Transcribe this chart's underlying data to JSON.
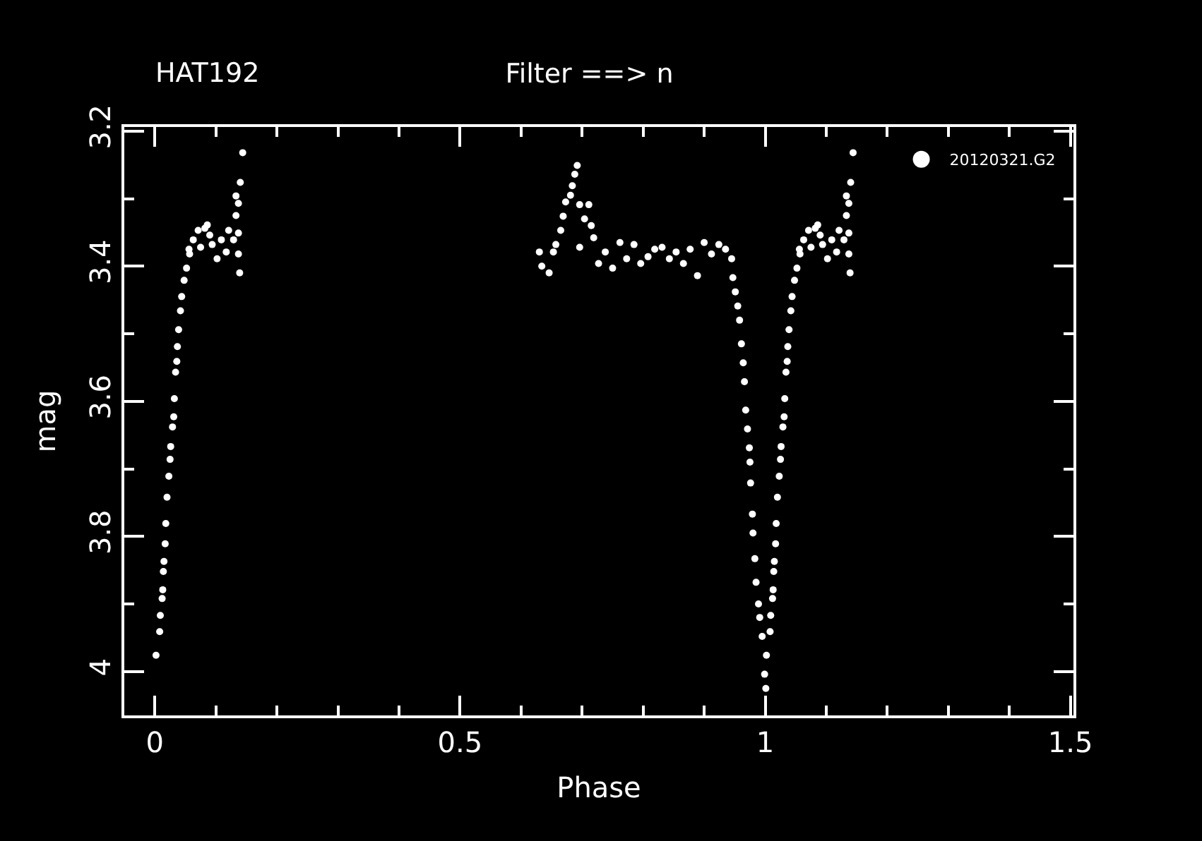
{
  "chart_data": {
    "type": "scatter",
    "title": "Filter ==> n",
    "xlabel": "Phase",
    "ylabel": "mag",
    "annotations": [
      "HAT192"
    ],
    "xlim": [
      -0.05,
      1.505
    ],
    "ylim": [
      4.065,
      3.194
    ],
    "xticks": [
      0,
      {
        "value": 0.1,
        "label": null
      },
      {
        "value": 0.2,
        "label": null
      },
      {
        "value": 0.3,
        "label": null
      },
      {
        "value": 0.4,
        "label": null
      },
      0.5,
      {
        "value": 0.6,
        "label": null
      },
      {
        "value": 0.7,
        "label": null
      },
      {
        "value": 0.8,
        "label": null
      },
      {
        "value": 0.9,
        "label": null
      },
      1,
      {
        "value": 1.1,
        "label": null
      },
      {
        "value": 1.2,
        "label": null
      },
      {
        "value": 1.3,
        "label": null
      },
      {
        "value": 1.4,
        "label": null
      },
      1.5
    ],
    "yticks": [
      3.2,
      {
        "value": 3.3,
        "label": null
      },
      3.4,
      {
        "value": 3.5,
        "label": null
      },
      3.6,
      {
        "value": 3.7,
        "label": null
      },
      3.8,
      {
        "value": 3.9,
        "label": null
      },
      4
    ],
    "grid": false,
    "legend": "top right",
    "marker": "circle",
    "series": [
      {
        "name": "20120321.G2",
        "color": "#ffffff",
        "x": [
          0.002,
          0.008,
          0.009,
          0.012,
          0.013,
          0.014,
          0.015,
          0.017,
          0.018,
          0.02,
          0.023,
          0.025,
          0.026,
          0.029,
          0.031,
          0.032,
          0.034,
          0.036,
          0.037,
          0.039,
          0.042,
          0.044,
          0.048,
          0.052,
          0.057,
          0.063,
          0.071,
          0.082,
          0.086,
          0.094,
          0.102,
          0.109,
          0.121,
          0.129,
          0.137,
          0.137,
          0.139,
          0.133,
          0.137,
          0.133,
          0.14,
          0.144,
          0.056,
          0.075,
          0.09,
          0.117,
          0.63,
          0.634,
          0.646,
          0.653,
          0.657,
          0.665,
          0.669,
          0.673,
          0.681,
          0.684,
          0.688,
          0.692,
          0.696,
          0.696,
          0.704,
          0.711,
          0.715,
          0.719,
          0.727,
          0.738,
          0.75,
          0.762,
          0.773,
          0.785,
          0.796,
          0.808,
          0.819,
          0.831,
          0.843,
          0.854,
          0.866,
          0.877,
          0.889,
          0.9,
          0.912,
          0.924,
          0.935,
          0.945,
          0.947,
          0.951,
          0.955,
          0.958,
          0.961,
          0.964,
          0.966,
          0.968,
          0.971,
          0.974,
          0.975,
          0.976,
          0.979,
          0.98,
          0.983,
          0.985,
          0.989,
          0.991,
          0.995,
          0.999,
          1.001,
          1.002,
          1.008,
          1.009,
          1.012,
          1.013,
          1.014,
          1.015,
          1.017,
          1.018,
          1.02,
          1.023,
          1.025,
          1.026,
          1.029,
          1.031,
          1.032,
          1.034,
          1.036,
          1.037,
          1.039,
          1.042,
          1.044,
          1.048,
          1.052,
          1.057,
          1.063,
          1.071,
          1.082,
          1.086,
          1.094,
          1.102,
          1.109,
          1.121,
          1.129,
          1.137,
          1.137,
          1.139,
          1.133,
          1.137,
          1.133,
          1.14,
          1.144,
          1.056,
          1.075,
          1.09,
          1.117
        ],
        "values": [
          3.976,
          3.941,
          3.917,
          3.892,
          3.879,
          3.852,
          3.837,
          3.811,
          3.781,
          3.742,
          3.711,
          3.686,
          3.667,
          3.638,
          3.623,
          3.596,
          3.557,
          3.541,
          3.519,
          3.494,
          3.466,
          3.445,
          3.421,
          3.403,
          3.382,
          3.361,
          3.347,
          3.344,
          3.339,
          3.368,
          3.389,
          3.361,
          3.347,
          3.361,
          3.351,
          3.382,
          3.41,
          3.325,
          3.307,
          3.296,
          3.276,
          3.232,
          3.375,
          3.372,
          3.354,
          3.379,
          3.379,
          3.4,
          3.41,
          3.379,
          3.368,
          3.347,
          3.326,
          3.305,
          3.295,
          3.281,
          3.264,
          3.251,
          3.309,
          3.372,
          3.33,
          3.309,
          3.34,
          3.358,
          3.396,
          3.379,
          3.403,
          3.365,
          3.389,
          3.368,
          3.396,
          3.386,
          3.375,
          3.372,
          3.389,
          3.379,
          3.396,
          3.375,
          3.414,
          3.365,
          3.382,
          3.368,
          3.375,
          3.389,
          3.417,
          3.438,
          3.459,
          3.48,
          3.515,
          3.543,
          3.571,
          3.613,
          3.641,
          3.669,
          3.69,
          3.721,
          3.767,
          3.795,
          3.833,
          3.868,
          3.9,
          3.92,
          3.948,
          4.004,
          4.025,
          3.976,
          3.941,
          3.917,
          3.892,
          3.879,
          3.852,
          3.837,
          3.811,
          3.781,
          3.742,
          3.711,
          3.686,
          3.667,
          3.638,
          3.623,
          3.596,
          3.557,
          3.541,
          3.519,
          3.494,
          3.466,
          3.445,
          3.421,
          3.403,
          3.382,
          3.361,
          3.347,
          3.344,
          3.339,
          3.368,
          3.389,
          3.361,
          3.347,
          3.361,
          3.351,
          3.382,
          3.41,
          3.325,
          3.307,
          3.296,
          3.276,
          3.232,
          3.375,
          3.372,
          3.354,
          3.379
        ]
      }
    ]
  }
}
